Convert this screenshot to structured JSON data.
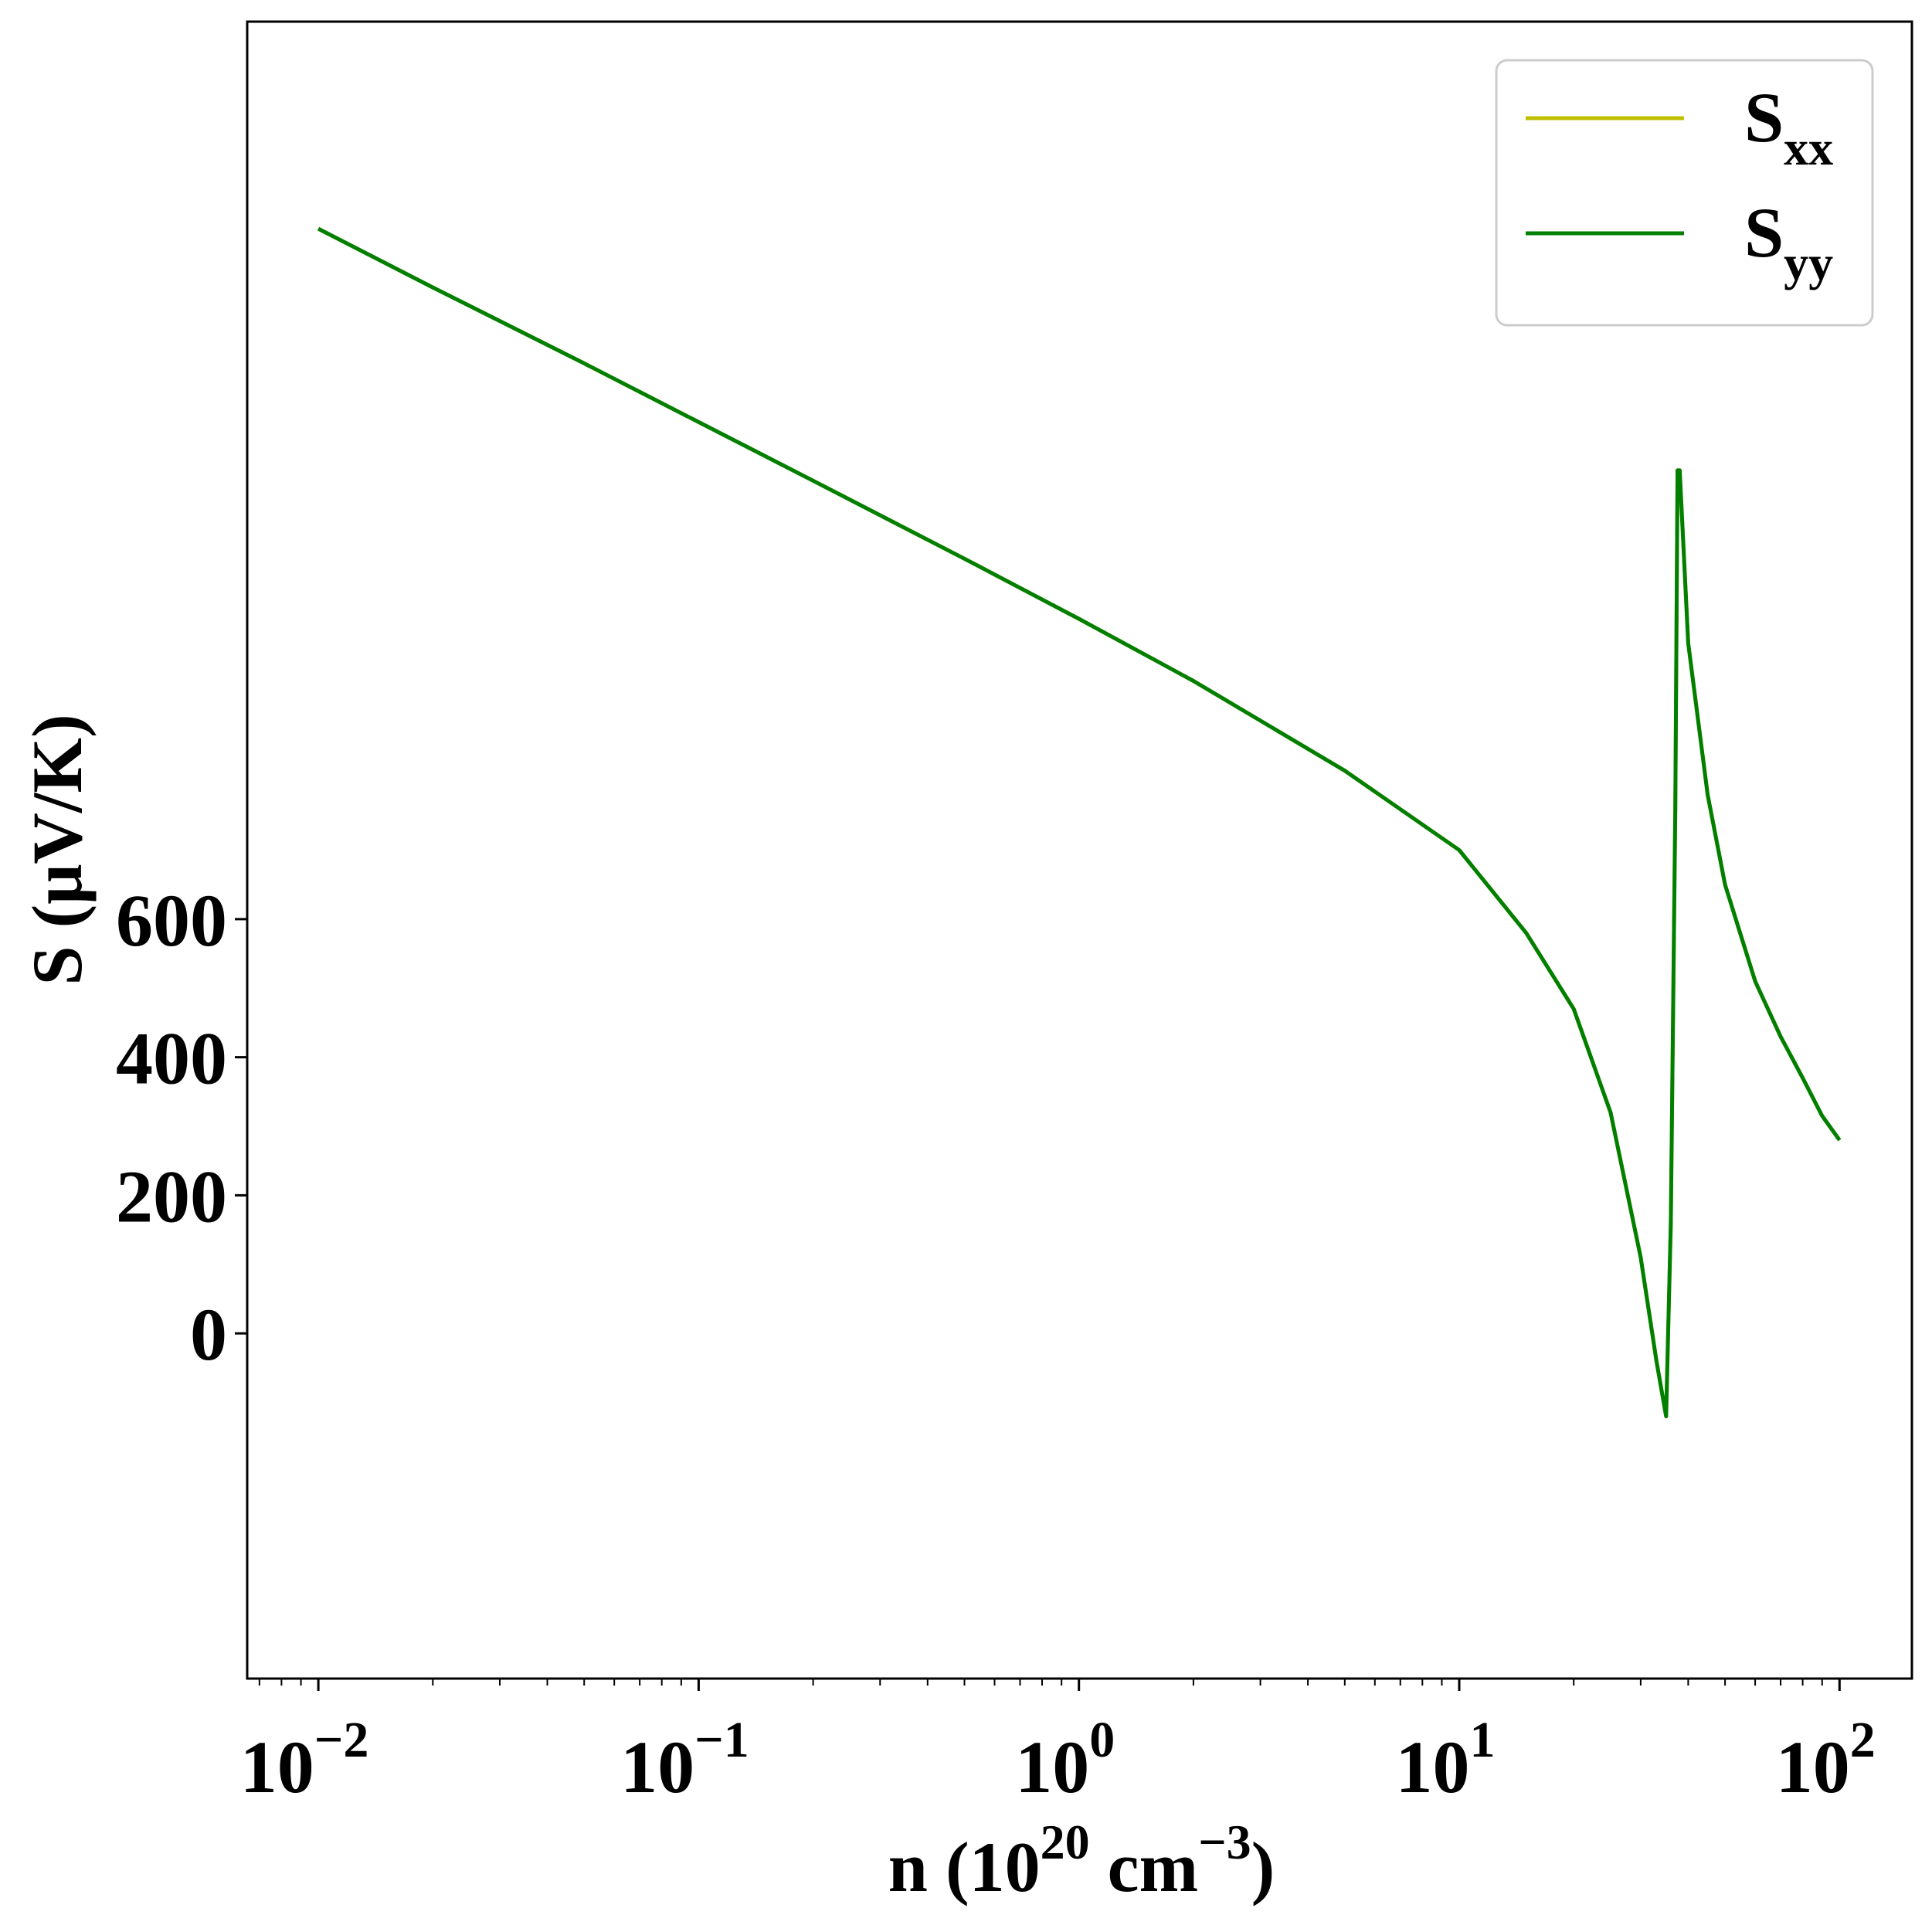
{
  "chart_data": {
    "type": "line",
    "title": "",
    "xscale": "log",
    "xlim": [
      0.0065,
      155
    ],
    "ylim": [
      -500,
      1900
    ],
    "grid": false,
    "legend_position": "top-right",
    "x_ticks": [
      {
        "base": "10",
        "exp": "−2",
        "value": 0.01
      },
      {
        "base": "10",
        "exp": "−1",
        "value": 0.1
      },
      {
        "base": "10",
        "exp": "0",
        "value": 1
      },
      {
        "base": "10",
        "exp": "1",
        "value": 10
      },
      {
        "base": "10",
        "exp": "2",
        "value": 100
      }
    ],
    "y_ticks": [
      {
        "label": "0",
        "value": 0
      },
      {
        "label": "200",
        "value": 200
      },
      {
        "label": "400",
        "value": 400
      },
      {
        "label": "600",
        "value": 600
      }
    ],
    "xlabel": {
      "main": "n (10",
      "sup1": "20",
      "mid": " cm",
      "sup2": "−3",
      "end": ")"
    },
    "ylabel": "S (μV/K)",
    "series": [
      {
        "name_main": "S",
        "name_sub": "xx",
        "color": "#bfbf00",
        "x": [
          0.01,
          0.02,
          0.05,
          0.1,
          0.2,
          0.5,
          1,
          2,
          5,
          10,
          15,
          20,
          25,
          30,
          33,
          35,
          36,
          37,
          37.5,
          38,
          40,
          45,
          50,
          60,
          70,
          80,
          90,
          100
        ],
        "y": [
          1600,
          1515,
          1405,
          1320,
          1235,
          1122,
          1035,
          945,
          815,
          700,
          580,
          470,
          320,
          110,
          -40,
          -120,
          160,
          760,
          1250,
          1250,
          1000,
          780,
          650,
          510,
          430,
          370,
          315,
          280
        ]
      },
      {
        "name_main": "S",
        "name_sub": "yy",
        "color": "#007f00",
        "x": [
          0.01,
          0.02,
          0.05,
          0.1,
          0.2,
          0.5,
          1,
          2,
          5,
          10,
          15,
          20,
          25,
          30,
          33,
          35,
          36,
          37,
          37.5,
          38,
          40,
          45,
          50,
          60,
          70,
          80,
          90,
          100
        ],
        "y": [
          1600,
          1515,
          1405,
          1320,
          1235,
          1122,
          1035,
          945,
          815,
          700,
          580,
          470,
          320,
          110,
          -40,
          -120,
          160,
          760,
          1250,
          1250,
          1000,
          780,
          650,
          510,
          430,
          370,
          315,
          280
        ]
      }
    ]
  }
}
